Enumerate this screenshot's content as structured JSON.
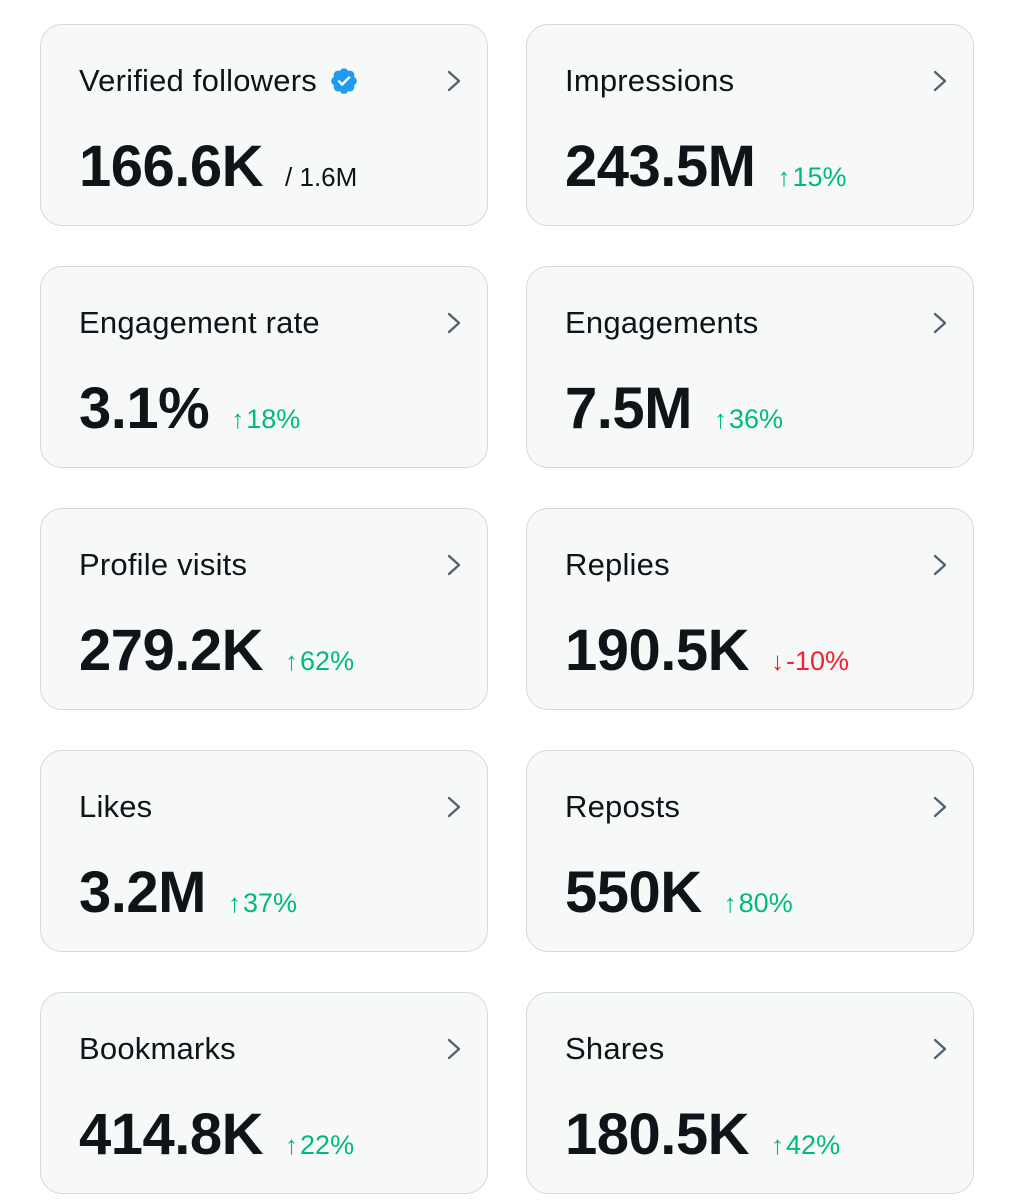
{
  "colors": {
    "up": "#00ba7c",
    "down": "#f4212e",
    "verified": "#1d9bf0"
  },
  "cards": [
    {
      "label": "Verified followers",
      "value": "166.6K",
      "sub": "/ 1.6M"
    },
    {
      "label": "Impressions",
      "value": "243.5M",
      "change": "15%",
      "arrow": "↑",
      "direction": "up"
    },
    {
      "label": "Engagement rate",
      "value": "3.1%",
      "change": "18%",
      "arrow": "↑",
      "direction": "up"
    },
    {
      "label": "Engagements",
      "value": "7.5M",
      "change": "36%",
      "arrow": "↑",
      "direction": "up"
    },
    {
      "label": "Profile visits",
      "value": "279.2K",
      "change": "62%",
      "arrow": "↑",
      "direction": "up"
    },
    {
      "label": "Replies",
      "value": "190.5K",
      "change": "-10%",
      "arrow": "↓",
      "direction": "down"
    },
    {
      "label": "Likes",
      "value": "3.2M",
      "change": "37%",
      "arrow": "↑",
      "direction": "up"
    },
    {
      "label": "Reposts",
      "value": "550K",
      "change": "80%",
      "arrow": "↑",
      "direction": "up"
    },
    {
      "label": "Bookmarks",
      "value": "414.8K",
      "change": "22%",
      "arrow": "↑",
      "direction": "up"
    },
    {
      "label": "Shares",
      "value": "180.5K",
      "change": "42%",
      "arrow": "↑",
      "direction": "up"
    }
  ]
}
